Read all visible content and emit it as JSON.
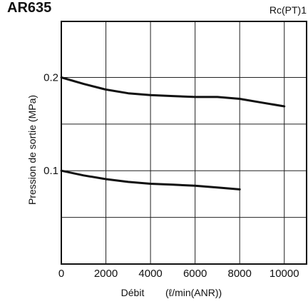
{
  "chart_data": {
    "type": "line",
    "title": "AR635",
    "port_label": "Rc(PT)1",
    "xlabel_main": "Débit",
    "xlabel_unit": "(ℓ/min(ANR))",
    "ylabel": "Pression de sortie (MPa)",
    "xlim": [
      0,
      11000
    ],
    "ylim": [
      0,
      0.26
    ],
    "x_ticks": [
      0,
      2000,
      4000,
      6000,
      8000,
      10000
    ],
    "x_tick_labels": [
      "0",
      "2000",
      "4000",
      "6000",
      "8000",
      "10000"
    ],
    "y_ticks": [
      0.1,
      0.2
    ],
    "y_tick_labels": [
      "0.1",
      "0.2"
    ],
    "x_grid": [
      2000,
      4000,
      6000,
      8000,
      10000
    ],
    "y_grid": [
      0.05,
      0.1,
      0.15,
      0.2
    ],
    "grid": true,
    "series": [
      {
        "x": [
          0,
          1000,
          2000,
          3000,
          4000,
          5000,
          6000,
          7000,
          8000,
          9000,
          10000
        ],
        "y": [
          0.2,
          0.193,
          0.187,
          0.183,
          0.181,
          0.18,
          0.179,
          0.179,
          0.177,
          0.173,
          0.169
        ]
      },
      {
        "x": [
          0,
          1000,
          2000,
          3000,
          4000,
          5000,
          6000,
          7000,
          8000
        ],
        "y": [
          0.1,
          0.095,
          0.091,
          0.088,
          0.086,
          0.085,
          0.084,
          0.082,
          0.08
        ]
      }
    ]
  },
  "colors": {
    "frame": "#111111",
    "grid": "#222222",
    "curve": "#111111",
    "text": "#111111"
  }
}
